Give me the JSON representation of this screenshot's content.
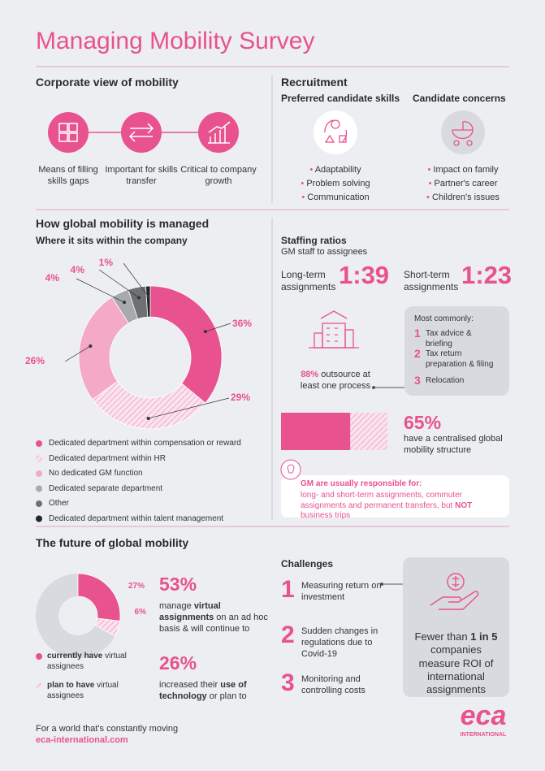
{
  "title": "Managing Mobility Survey",
  "corporate": {
    "heading": "Corporate view of mobility",
    "items": [
      "Means of filling skills gaps",
      "Important for skills transfer",
      "Critical to company growth"
    ]
  },
  "recruitment": {
    "heading": "Recruitment",
    "skills": {
      "heading": "Preferred candidate skills",
      "items": [
        "Adaptability",
        "Problem solving",
        "Communication"
      ]
    },
    "concerns": {
      "heading": "Candidate concerns",
      "items": [
        "Impact on family",
        "Partner's career",
        "Children's issues"
      ]
    }
  },
  "managed": {
    "heading": "How global mobility is managed",
    "subheading": "Where it sits within the company",
    "donut": {
      "values": [
        36,
        29,
        26,
        4,
        4,
        1
      ],
      "value_labels": [
        "36%",
        "29%",
        "26%",
        "4%",
        "4%",
        "1%"
      ],
      "names": [
        "Dedicated department within compensation or reward",
        "Dedicated department within HR",
        "No dedicated GM function",
        "Dedicated separate department",
        "Other",
        "Dedicated department within talent management"
      ],
      "colors": [
        "#e8528f",
        "#e8528f",
        "#f4a9c7",
        "#a7a9ad",
        "#6e7074",
        "#23252b"
      ],
      "patterns": [
        "solid",
        "hatch",
        "solid",
        "solid",
        "solid",
        "solid"
      ]
    }
  },
  "staffing": {
    "heading": "Staffing ratios",
    "subheading": "GM staff to assignees",
    "long": {
      "label": "Long-term assignments",
      "ratio": "1:39"
    },
    "short": {
      "label": "Short-term assignments",
      "ratio": "1:23"
    },
    "outsource": [
      "88%",
      " outsource at least one process"
    ],
    "common": {
      "heading": "Most commonly:",
      "items": [
        {
          "num": "1",
          "text": "Tax advice & briefing"
        },
        {
          "num": "2",
          "text": "Tax return preparation & filing"
        },
        {
          "num": "3",
          "text": "Relocation"
        }
      ]
    }
  },
  "centralised": {
    "value": 65,
    "value_label": "65%",
    "lim": [
      0,
      100
    ],
    "color": "#e8528f",
    "text": "have a centralised global mobility structure"
  },
  "tip": {
    "heading": "GM are usually responsible for:",
    "text": [
      "long- and short-term assignments, commuter assignments and permanent transfers, but ",
      "NOT",
      " business trips"
    ]
  },
  "future": {
    "heading": "The future of global mobility",
    "donut": {
      "values": [
        27,
        6
      ],
      "value_labels": [
        "27%",
        "6%"
      ],
      "lim": [
        0,
        100
      ],
      "colors": [
        "#e8528f",
        "#e8528f"
      ],
      "patterns": [
        "solid",
        "hatch"
      ],
      "names": [
        [
          "currently have",
          " virtual assignees"
        ],
        [
          "plan to have",
          " virtual assignees"
        ]
      ]
    },
    "stats": [
      {
        "value": "53%",
        "text": [
          "manage ",
          "virtual assignments",
          " on an ad hoc basis & will continue to"
        ]
      },
      {
        "value": "26%",
        "text": [
          "increased their ",
          "use of technology",
          " or plan to"
        ]
      }
    ]
  },
  "challenges": {
    "heading": "Challenges",
    "items": [
      {
        "num": "1",
        "text": "Measuring return on investment"
      },
      {
        "num": "2",
        "text": "Sudden changes in regulations due to Covid-19"
      },
      {
        "num": "3",
        "text": "Monitoring and controlling costs"
      }
    ],
    "callout": [
      "Fewer than ",
      "1 in 5",
      " companies measure ROI of international assignments"
    ]
  },
  "footer": {
    "tagline": "For a world that's constantly moving",
    "url": "eca-international.com",
    "logo": "eca",
    "logo_sub": "INTERNATIONAL"
  }
}
